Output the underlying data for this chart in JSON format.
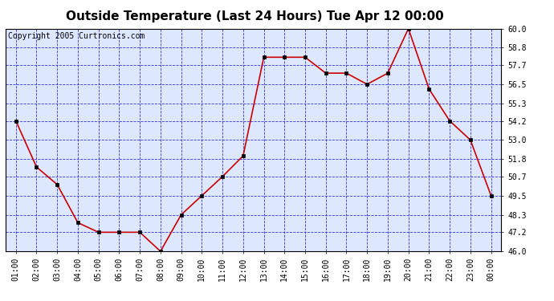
{
  "title": "Outside Temperature (Last 24 Hours) Tue Apr 12 00:00",
  "copyright": "Copyright 2005 Curtronics.com",
  "x_labels": [
    "01:00",
    "02:00",
    "03:00",
    "04:00",
    "05:00",
    "06:00",
    "07:00",
    "08:00",
    "09:00",
    "10:00",
    "11:00",
    "12:00",
    "13:00",
    "14:00",
    "15:00",
    "16:00",
    "17:00",
    "18:00",
    "19:00",
    "20:00",
    "21:00",
    "22:00",
    "23:00",
    "00:00"
  ],
  "y_values": [
    54.2,
    51.3,
    50.2,
    47.8,
    47.2,
    47.2,
    47.2,
    46.0,
    48.3,
    49.5,
    50.7,
    52.0,
    58.2,
    58.2,
    58.2,
    57.2,
    57.2,
    56.5,
    57.2,
    60.0,
    56.2,
    54.2,
    53.0,
    49.5
  ],
  "ylim": [
    46.0,
    60.0
  ],
  "yticks": [
    46.0,
    47.2,
    48.3,
    49.5,
    50.7,
    51.8,
    53.0,
    54.2,
    55.3,
    56.5,
    57.7,
    58.8,
    60.0
  ],
  "line_color": "#cc0000",
  "marker_color": "#000000",
  "grid_color": "#2222cc",
  "bg_color": "#dde8ff",
  "outer_bg": "#ffffff",
  "title_fontsize": 11,
  "copyright_fontsize": 7,
  "tick_fontsize": 7
}
